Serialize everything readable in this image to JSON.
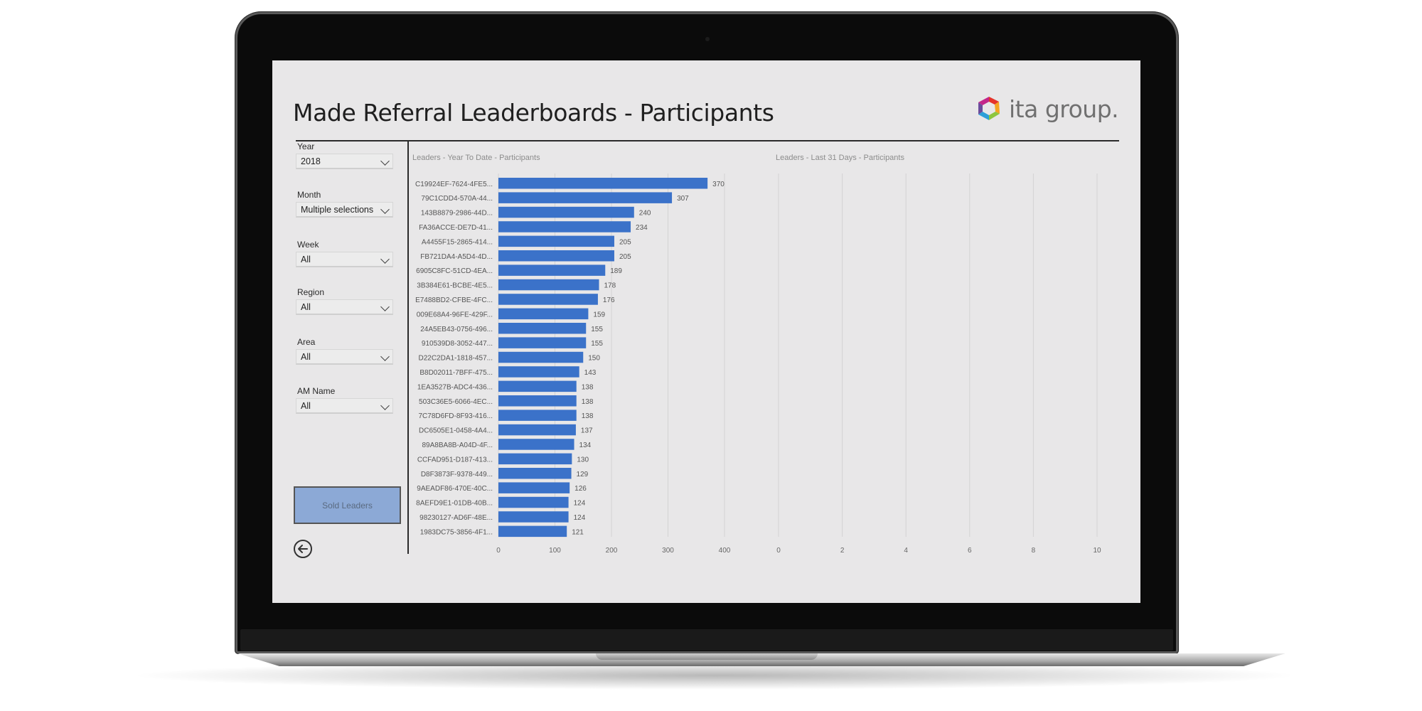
{
  "report": {
    "title": "Made Referral Leaderboards - Participants",
    "logo_text": "ita group.",
    "logo_icon": "ita-group-logo-icon"
  },
  "filters": [
    {
      "label": "Year",
      "value": "2018"
    },
    {
      "label": "Month",
      "value": "Multiple selections"
    },
    {
      "label": "Week",
      "value": "All"
    },
    {
      "label": "Region",
      "value": "All"
    },
    {
      "label": "Area",
      "value": "All"
    },
    {
      "label": "AM Name",
      "value": "All"
    }
  ],
  "buttons": {
    "sold_leaders": "Sold Leaders",
    "back_icon": "back-arrow-icon"
  },
  "colors": {
    "bar": "#3b72c9",
    "sold_button": "#8ca9d6",
    "background": "#e8e7e8"
  },
  "chart_data": [
    {
      "type": "bar",
      "orientation": "horizontal",
      "title": "Leaders - Year To Date - Participants",
      "categories": [
        "C19924EF-7624-4FE5...",
        "79C1CDD4-570A-44...",
        "143B8879-2986-44D...",
        "FA36ACCE-DE7D-41...",
        "A4455F15-2865-414...",
        "FB721DA4-A5D4-4D...",
        "6905C8FC-51CD-4EA...",
        "3B384E61-BCBE-4E5...",
        "E7488BD2-CFBE-4FC...",
        "009E68A4-96FE-429F...",
        "24A5EB43-0756-496...",
        "910539D8-3052-447...",
        "D22C2DA1-1818-457...",
        "B8D02011-7BFF-475...",
        "1EA3527B-ADC4-436...",
        "503C36E5-6066-4EC...",
        "7C78D6FD-8F93-416...",
        "DC6505E1-0458-4A4...",
        "89A8BA8B-A04D-4F...",
        "CCFAD951-D187-413...",
        "D8F3873F-9378-449...",
        "9AEADF86-470E-40C...",
        "8AEFD9E1-01DB-40B...",
        "98230127-AD6F-48E...",
        "1983DC75-3856-4F1..."
      ],
      "values": [
        370,
        307,
        240,
        234,
        205,
        205,
        189,
        178,
        176,
        159,
        155,
        155,
        150,
        143,
        138,
        138,
        138,
        137,
        134,
        130,
        129,
        126,
        124,
        124,
        121
      ],
      "data_labels": true,
      "xlim": [
        0,
        400
      ],
      "xticks": [
        0,
        100,
        200,
        300,
        400
      ],
      "grid": "vertical"
    },
    {
      "type": "bar",
      "orientation": "horizontal",
      "title": "Leaders - Last 31 Days - Participants",
      "categories": [],
      "values": [],
      "xlim": [
        0,
        10
      ],
      "xticks": [
        0,
        2,
        4,
        6,
        8,
        10
      ],
      "grid": "vertical"
    }
  ]
}
